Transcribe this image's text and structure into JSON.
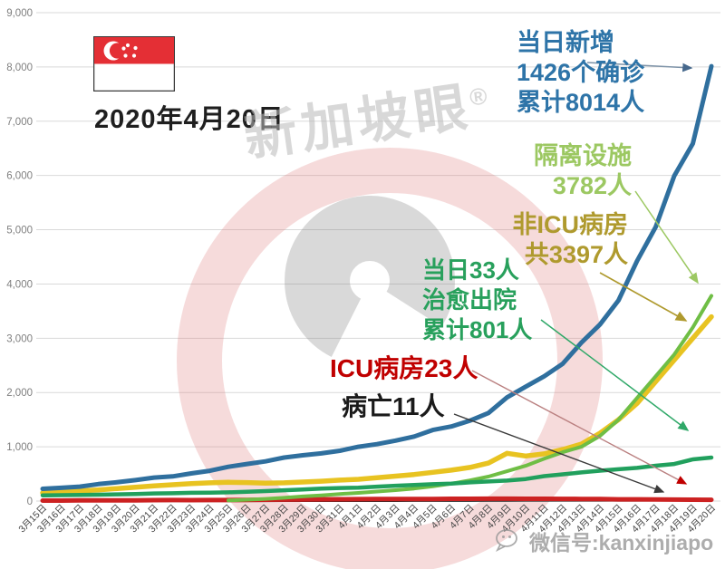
{
  "header": {
    "date_label": "2020年4月20日"
  },
  "watermark": {
    "brand": "新加坡眼",
    "brand_mark": "®",
    "wechat": "微信号:kanxinjiapo"
  },
  "flag": {
    "name": "singapore-flag",
    "red": "#E42F35"
  },
  "annotations": {
    "confirmed": {
      "lines": [
        "当日新增",
        "1426个确诊",
        "累计8014人"
      ],
      "color": "#2E74A8"
    },
    "isolation": {
      "lines": [
        "隔离设施",
        "3782人"
      ],
      "color": "#9CC862"
    },
    "non_icu": {
      "lines": [
        "非ICU病房",
        "共3397人"
      ],
      "color": "#AF9A2E"
    },
    "recovered": {
      "lines": [
        "当日33人",
        "治愈出院",
        "累计801人"
      ],
      "color": "#28A05C"
    },
    "icu": {
      "text": "ICU病房23人",
      "color": "#C00000"
    },
    "deaths": {
      "text": "病亡11人",
      "color": "#1A1A1A"
    }
  },
  "chart_data": {
    "type": "line",
    "title": "",
    "xlabel": "",
    "ylabel": "",
    "ylim": [
      0,
      9000
    ],
    "grid": true,
    "legend": "none (annotated with arrows)",
    "y_ticks": [
      "9,000",
      "8,000",
      "7,000",
      "6,000",
      "5,000",
      "4,000",
      "3,000",
      "2,000",
      "1,000",
      "0"
    ],
    "y_tick_values": [
      9000,
      8000,
      7000,
      6000,
      5000,
      4000,
      3000,
      2000,
      1000,
      0
    ],
    "categories": [
      "3月15日",
      "3月16日",
      "3月17日",
      "3月18日",
      "3月19日",
      "3月20日",
      "3月21日",
      "3月22日",
      "3月23日",
      "3月24日",
      "3月25日",
      "3月26日",
      "3月27日",
      "3月28日",
      "3月29日",
      "3月30日",
      "3月31日",
      "4月1日",
      "4月2日",
      "4月3日",
      "4月4日",
      "4月5日",
      "4月6日",
      "4月7日",
      "4月8日",
      "4月9日",
      "4月10日",
      "4月11日",
      "4月12日",
      "4月13日",
      "4月14日",
      "4月15日",
      "4月16日",
      "4月17日",
      "4月18日",
      "4月19日",
      "4月20日"
    ],
    "series": [
      {
        "key": "deaths-line",
        "name": "病亡",
        "color": "#2B2B2B",
        "width": 2.5,
        "values": [
          0,
          0,
          0,
          0,
          0,
          0,
          2,
          2,
          2,
          2,
          2,
          2,
          2,
          3,
          3,
          3,
          3,
          4,
          4,
          5,
          6,
          6,
          6,
          7,
          8,
          9,
          10,
          10,
          10,
          10,
          10,
          10,
          10,
          11,
          11,
          11,
          11
        ]
      },
      {
        "key": "icu-line",
        "name": "ICU病房",
        "color": "#CC2222",
        "width": 5,
        "values": [
          9,
          9,
          11,
          12,
          14,
          14,
          16,
          18,
          17,
          18,
          19,
          22,
          25,
          27,
          30,
          32,
          33,
          35,
          37,
          37,
          38,
          39,
          41,
          42,
          44,
          43,
          42,
          41,
          40,
          39,
          36,
          32,
          31,
          29,
          27,
          25,
          23
        ]
      },
      {
        "key": "non-icu-line",
        "name": "非ICU病房",
        "color": "#E8C321",
        "width": 5.5,
        "values": [
          150,
          165,
          185,
          205,
          230,
          255,
          280,
          300,
          320,
          335,
          345,
          340,
          330,
          335,
          350,
          365,
          385,
          400,
          430,
          460,
          490,
          530,
          570,
          620,
          700,
          880,
          830,
          870,
          950,
          1050,
          1250,
          1500,
          1800,
          2200,
          2600,
          3000,
          3397
        ]
      },
      {
        "key": "isolation-line",
        "name": "隔离设施",
        "color": "#6FBE45",
        "width": 4,
        "values": [
          null,
          null,
          null,
          null,
          null,
          null,
          null,
          null,
          null,
          null,
          12,
          25,
          40,
          60,
          85,
          105,
          130,
          150,
          175,
          200,
          230,
          270,
          320,
          380,
          450,
          550,
          650,
          780,
          900,
          1000,
          1200,
          1500,
          1900,
          2300,
          2700,
          3200,
          3782
        ]
      },
      {
        "key": "recovered-line",
        "name": "治愈出院累计",
        "color": "#21A05D",
        "width": 4.5,
        "values": [
          105,
          109,
          114,
          117,
          124,
          131,
          140,
          144,
          152,
          156,
          160,
          172,
          183,
          198,
          212,
          228,
          240,
          245,
          266,
          282,
          297,
          310,
          320,
          344,
          360,
          377,
          406,
          460,
          492,
          528,
          560,
          586,
          611,
          652,
          683,
          768,
          801
        ]
      },
      {
        "key": "confirmed-line",
        "name": "累计确诊",
        "color": "#2F6F9E",
        "width": 5,
        "values": [
          226,
          243,
          266,
          313,
          345,
          385,
          432,
          455,
          509,
          558,
          631,
          683,
          732,
          802,
          844,
          879,
          926,
          1000,
          1049,
          1114,
          1189,
          1309,
          1375,
          1481,
          1623,
          1910,
          2108,
          2299,
          2532,
          2918,
          3252,
          3699,
          4427,
          5050,
          5992,
          6588,
          8014
        ]
      }
    ]
  }
}
